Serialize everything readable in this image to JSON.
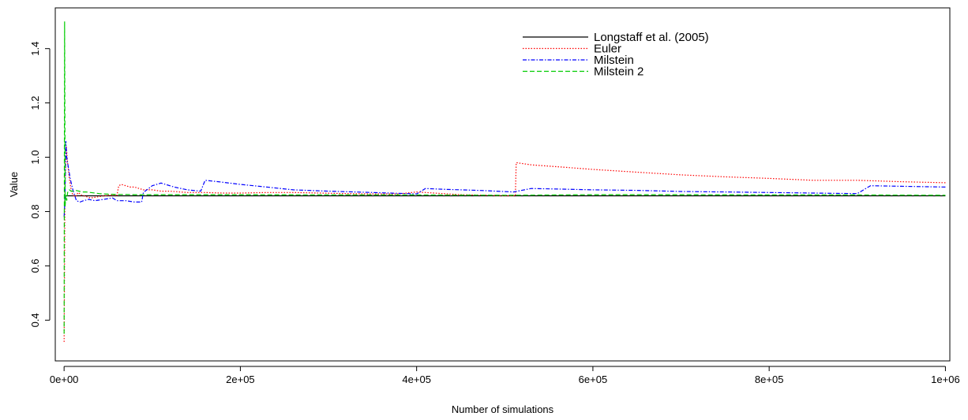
{
  "chart_data": {
    "type": "line",
    "title": "",
    "xlabel": "Number of simulations",
    "ylabel": "Value",
    "xlim": [
      0,
      1000000
    ],
    "ylim": [
      0.25,
      1.55
    ],
    "x_ticks": [
      {
        "value": 0,
        "label": "0e+00"
      },
      {
        "value": 200000,
        "label": "2e+05"
      },
      {
        "value": 400000,
        "label": "4e+05"
      },
      {
        "value": 600000,
        "label": "6e+05"
      },
      {
        "value": 800000,
        "label": "8e+05"
      },
      {
        "value": 1000000,
        "label": "1e+06"
      }
    ],
    "y_ticks": [
      {
        "value": 0.4,
        "label": "0.4"
      },
      {
        "value": 0.6,
        "label": "0.6"
      },
      {
        "value": 0.8,
        "label": "0.8"
      },
      {
        "value": 1.0,
        "label": "1.0"
      },
      {
        "value": 1.2,
        "label": "1.2"
      },
      {
        "value": 1.4,
        "label": "1.4"
      }
    ],
    "grid": false,
    "legend_position": "top-right",
    "series": [
      {
        "name": "Longstaff et al. (2005)",
        "color": "#000000",
        "dash": "solid",
        "x": [
          0,
          1000000
        ],
        "y": [
          0.858,
          0.858
        ]
      },
      {
        "name": "Euler",
        "color": "#ff0000",
        "dash": "dotted",
        "x": [
          0,
          1000,
          2500,
          4000,
          6000,
          8000,
          10000,
          13000,
          16000,
          20000,
          25000,
          30000,
          40000,
          50000,
          60000,
          62000,
          65000,
          70000,
          75000,
          80000,
          90000,
          100000,
          110000,
          120000,
          140000,
          160000,
          180000,
          200000,
          230000,
          260000,
          290000,
          320000,
          350000,
          380000,
          400000,
          420000,
          450000,
          480000,
          500000,
          512000,
          513000,
          530000,
          560000,
          600000,
          650000,
          700000,
          750000,
          800000,
          850000,
          900000,
          950000,
          1000000
        ],
        "y": [
          0.32,
          0.9,
          1.04,
          0.98,
          0.92,
          0.88,
          0.86,
          0.855,
          0.87,
          0.86,
          0.855,
          0.85,
          0.855,
          0.86,
          0.86,
          0.895,
          0.9,
          0.895,
          0.89,
          0.89,
          0.88,
          0.88,
          0.875,
          0.875,
          0.87,
          0.87,
          0.868,
          0.868,
          0.87,
          0.87,
          0.868,
          0.866,
          0.865,
          0.865,
          0.872,
          0.868,
          0.862,
          0.86,
          0.858,
          0.858,
          0.98,
          0.972,
          0.965,
          0.955,
          0.945,
          0.935,
          0.928,
          0.922,
          0.915,
          0.915,
          0.91,
          0.906
        ]
      },
      {
        "name": "Milstein",
        "color": "#0000ff",
        "dash": "dashdot",
        "x": [
          0,
          1000,
          2000,
          3000,
          5000,
          7000,
          10000,
          14000,
          18000,
          22000,
          28000,
          35000,
          45000,
          55000,
          60000,
          70000,
          80000,
          88000,
          90000,
          100000,
          110000,
          115000,
          125000,
          140000,
          155000,
          160000,
          175000,
          200000,
          230000,
          260000,
          300000,
          350000,
          400000,
          410000,
          430000,
          470000,
          510000,
          530000,
          560000,
          600000,
          650000,
          700000,
          750000,
          800000,
          850000,
          900000,
          915000,
          950000,
          1000000
        ],
        "y": [
          0.78,
          0.85,
          1.06,
          1.0,
          0.96,
          0.92,
          0.88,
          0.84,
          0.835,
          0.84,
          0.845,
          0.84,
          0.845,
          0.85,
          0.84,
          0.84,
          0.835,
          0.835,
          0.87,
          0.895,
          0.905,
          0.9,
          0.89,
          0.88,
          0.875,
          0.915,
          0.91,
          0.9,
          0.89,
          0.88,
          0.875,
          0.87,
          0.865,
          0.885,
          0.882,
          0.878,
          0.872,
          0.885,
          0.883,
          0.88,
          0.878,
          0.874,
          0.872,
          0.87,
          0.868,
          0.866,
          0.895,
          0.893,
          0.89
        ]
      },
      {
        "name": "Milstein 2",
        "color": "#00cc00",
        "dash": "dashed",
        "x": [
          0,
          600,
          1200,
          2000,
          3000,
          4000,
          6000,
          8000,
          10000,
          13000,
          16000,
          20000,
          25000,
          30000,
          40000,
          50000,
          60000,
          70000,
          80000,
          100000,
          150000,
          200000,
          300000,
          400000,
          500000,
          600000,
          700000,
          800000,
          900000,
          1000000
        ],
        "y": [
          0.35,
          1.5,
          0.82,
          0.86,
          0.84,
          0.87,
          0.88,
          0.875,
          0.875,
          0.878,
          0.876,
          0.872,
          0.872,
          0.87,
          0.866,
          0.864,
          0.863,
          0.863,
          0.862,
          0.862,
          0.862,
          0.862,
          0.861,
          0.861,
          0.86,
          0.862,
          0.862,
          0.861,
          0.861,
          0.86
        ]
      }
    ]
  }
}
